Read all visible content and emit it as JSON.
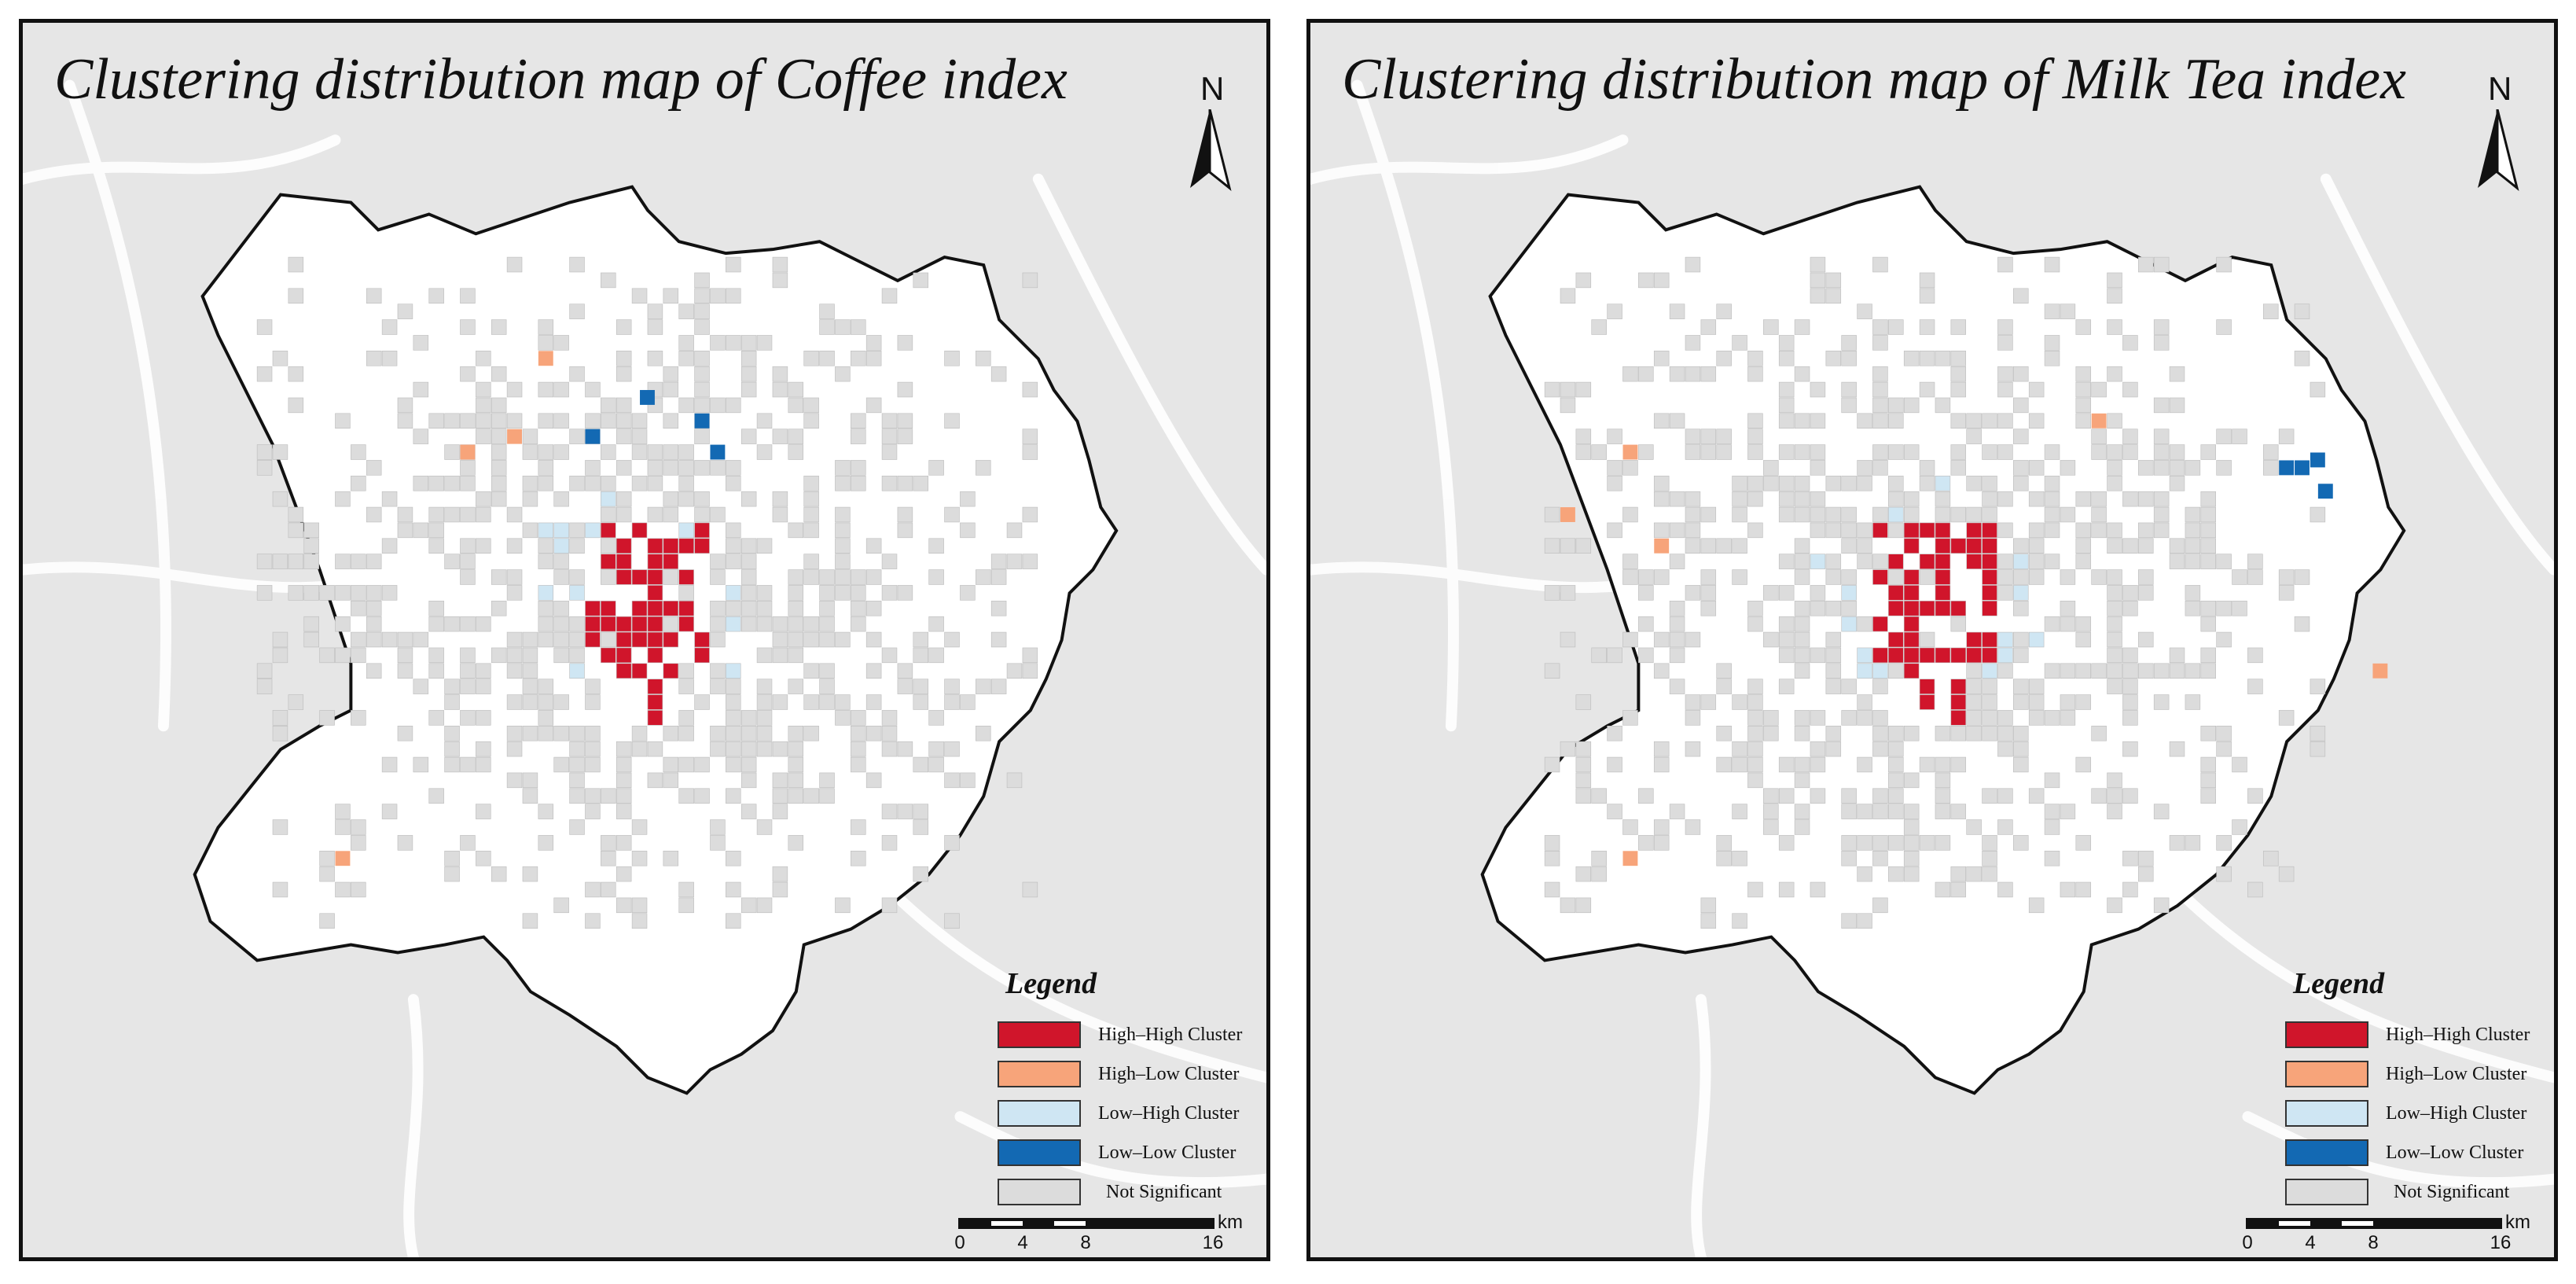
{
  "maps": [
    {
      "title": "Clustering distribution map of Coffee  index",
      "north_label": "N",
      "legend": {
        "title": "Legend",
        "items": [
          {
            "label": "High–High Cluster",
            "color": "#d0152b"
          },
          {
            "label": "High–Low Cluster",
            "color": "#f7a47a"
          },
          {
            "label": "Low–High Cluster",
            "color": "#cfe6f3"
          },
          {
            "label": "Low–Low Cluster",
            "color": "#1369b3"
          },
          {
            "label": "Not Significant",
            "color": "#dcdcdc"
          }
        ]
      },
      "scale": {
        "unit": "km",
        "ticks": [
          "0",
          "4",
          "8",
          "16"
        ]
      }
    },
    {
      "title": "Clustering distribution map of Milk Tea index",
      "north_label": "N",
      "legend": {
        "title": "Legend",
        "items": [
          {
            "label": "High–High Cluster",
            "color": "#d0152b"
          },
          {
            "label": "High–Low Cluster",
            "color": "#f7a47a"
          },
          {
            "label": "Low–High Cluster",
            "color": "#cfe6f3"
          },
          {
            "label": "Low–Low Cluster",
            "color": "#1369b3"
          },
          {
            "label": "Not Significant",
            "color": "#dcdcdc"
          }
        ]
      },
      "scale": {
        "unit": "km",
        "ticks": [
          "0",
          "4",
          "8",
          "16"
        ]
      }
    }
  ]
}
